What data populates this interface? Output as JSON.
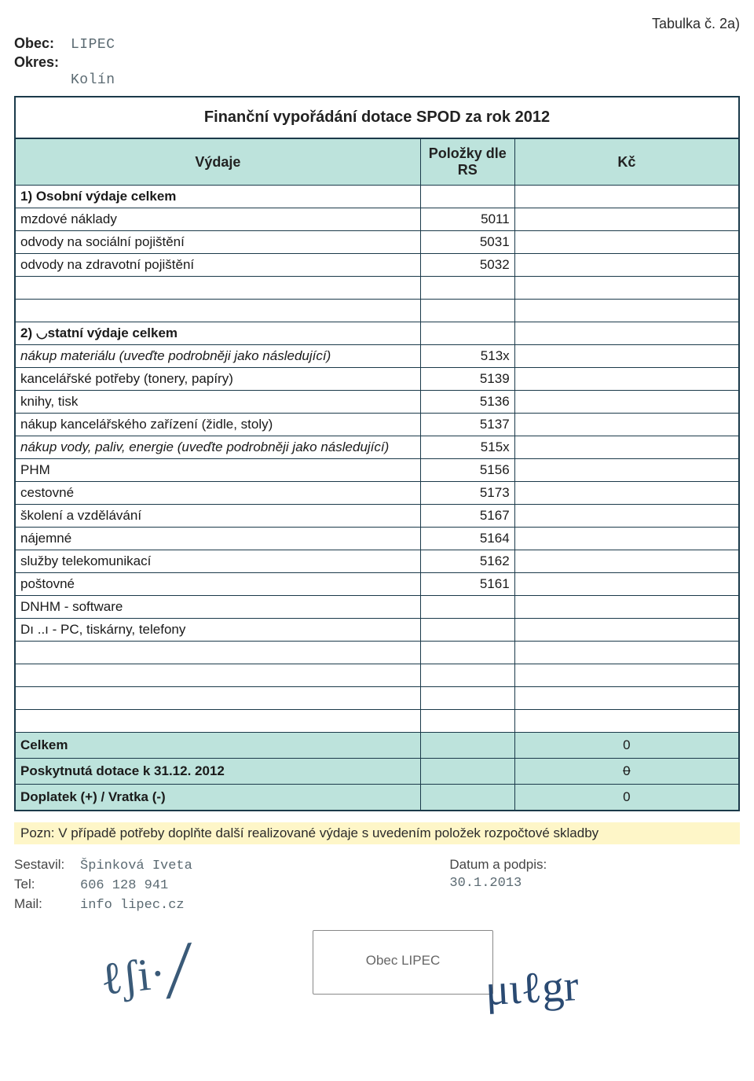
{
  "top_right": "Tabulka č. 2a)",
  "header": {
    "obec_label": "Obec:",
    "obec_value": "LIPEC",
    "okres_label": "Okres:",
    "okres_value": "Kolín"
  },
  "table": {
    "title": "Finanční vypořádání dotace SPOD za rok 2012",
    "col_vydaje": "Výdaje",
    "col_rs": "Položky dle RS",
    "col_kc": "Kč",
    "rows": [
      {
        "label": "1) Osobní výdaje celkem",
        "rs": "",
        "kc": "",
        "bold": true
      },
      {
        "label": "mzdové náklady",
        "rs": "5011",
        "kc": ""
      },
      {
        "label": "odvody na sociální pojištění",
        "rs": "5031",
        "kc": ""
      },
      {
        "label": "odvody na zdravotní pojištění",
        "rs": "5032",
        "kc": ""
      },
      {
        "label": "",
        "rs": "",
        "kc": ""
      },
      {
        "label": "",
        "rs": "",
        "kc": ""
      },
      {
        "label": "2) ◡statní výdaje celkem",
        "rs": "",
        "kc": "",
        "bold": true
      },
      {
        "label": "nákup materiálu (uveďte podrobněji jako následující)",
        "rs": "513x",
        "kc": "",
        "italic": true
      },
      {
        "label": "kancelářské potřeby (tonery, papíry)",
        "rs": "5139",
        "kc": ""
      },
      {
        "label": "knihy, tisk",
        "rs": "5136",
        "kc": ""
      },
      {
        "label": "nákup kancelářského zařízení  (židle, stoly)",
        "rs": "5137",
        "kc": ""
      },
      {
        "label": "nákup vody, paliv, energie (uveďte podrobněji jako následující)",
        "rs": "515x",
        "kc": "",
        "italic": true
      },
      {
        "label": "PHM",
        "rs": "5156",
        "kc": ""
      },
      {
        "label": "cestovné",
        "rs": "5173",
        "kc": ""
      },
      {
        "label": "školení a vzdělávání",
        "rs": "5167",
        "kc": ""
      },
      {
        "label": "nájemné",
        "rs": "5164",
        "kc": ""
      },
      {
        "label": "služby telekomunikací",
        "rs": "5162",
        "kc": ""
      },
      {
        "label": "poštovné",
        "rs": "5161",
        "kc": ""
      },
      {
        "label": "DNHM - software",
        "rs": "",
        "kc": ""
      },
      {
        "label": "Dı ..ı - PC, tiskárny, telefony",
        "rs": "",
        "kc": ""
      },
      {
        "label": "",
        "rs": "",
        "kc": ""
      },
      {
        "label": "",
        "rs": "",
        "kc": ""
      },
      {
        "label": "",
        "rs": "",
        "kc": ""
      },
      {
        "label": "",
        "rs": "",
        "kc": ""
      }
    ],
    "totals": [
      {
        "label": "Celkem",
        "rs": "",
        "kc": "0"
      },
      {
        "label": "Poskytnutá dotace k 31.12. 2012",
        "rs": "",
        "kc": "0",
        "strike": true
      },
      {
        "label": "Doplatek (+) / Vratka (-)",
        "rs": "",
        "kc": "0"
      }
    ]
  },
  "note": "Pozn: V případě potřeby doplňte další realizované výdaje s uvedením položek rozpočtové skladby",
  "footer": {
    "sestavil_label": "Sestavil:",
    "sestavil_value": "Špinková Iveta",
    "tel_label": "Tel:",
    "tel_value": "606 128 941",
    "mail_label": "Mail:",
    "mail_value": "info lipec.cz",
    "datum_label": "Datum a podpis:",
    "datum_value": "30.1.2013",
    "stamp_text": "Obec LIPEC"
  },
  "colors": {
    "header_bg": "#bde3dc",
    "border": "#1b3a4a",
    "note_bg": "#fef6c8",
    "mono_text": "#5b6a72"
  }
}
